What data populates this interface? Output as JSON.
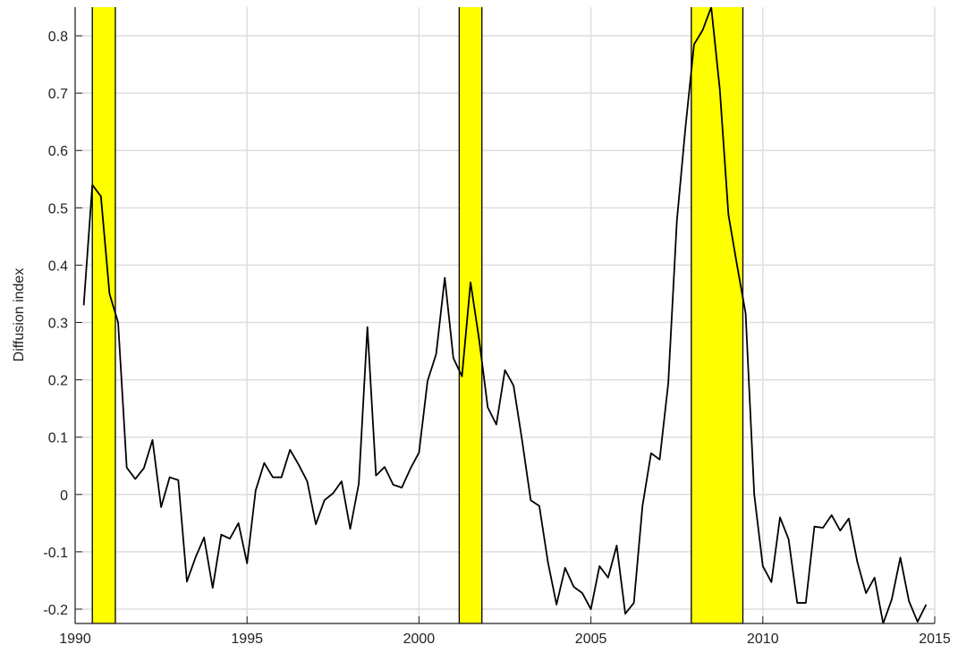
{
  "chart_data": {
    "type": "line",
    "ylabel": "Diffusion index",
    "x": [
      1990.25,
      1990.5,
      1990.75,
      1991,
      1991.25,
      1991.5,
      1991.75,
      1992,
      1992.25,
      1992.5,
      1992.75,
      1993,
      1993.25,
      1993.5,
      1993.75,
      1994,
      1994.25,
      1994.5,
      1994.75,
      1995,
      1995.25,
      1995.5,
      1995.75,
      1996,
      1996.25,
      1996.5,
      1996.75,
      1997,
      1997.25,
      1997.5,
      1997.75,
      1998,
      1998.25,
      1998.5,
      1998.75,
      1999,
      1999.25,
      1999.5,
      1999.75,
      2000,
      2000.25,
      2000.5,
      2000.75,
      2001,
      2001.25,
      2001.5,
      2001.75,
      2002,
      2002.25,
      2002.5,
      2002.75,
      2003,
      2003.25,
      2003.5,
      2003.75,
      2004,
      2004.25,
      2004.5,
      2004.75,
      2005,
      2005.25,
      2005.5,
      2005.75,
      2006,
      2006.25,
      2006.5,
      2006.75,
      2007,
      2007.25,
      2007.5,
      2007.75,
      2008,
      2008.25,
      2008.5,
      2008.75,
      2009,
      2009.25,
      2009.5,
      2009.75,
      2010,
      2010.25,
      2010.5,
      2010.75,
      2011,
      2011.25,
      2011.5,
      2011.75,
      2012,
      2012.25,
      2012.5,
      2012.75,
      2013,
      2013.25,
      2013.5,
      2013.75,
      2014,
      2014.25,
      2014.5,
      2014.75
    ],
    "series": [
      {
        "color": "#000000",
        "values": [
          0.33,
          0.54,
          0.52,
          0.35,
          0.3,
          0.047,
          0.027,
          0.046,
          0.095,
          -0.022,
          0.03,
          0.025,
          -0.152,
          -0.11,
          -0.075,
          -0.163,
          -0.07,
          -0.077,
          -0.05,
          -0.12,
          0.007,
          0.055,
          0.03,
          0.03,
          0.078,
          0.052,
          0.023,
          -0.052,
          -0.01,
          0.002,
          0.023,
          -0.06,
          0.019,
          0.292,
          0.033,
          0.048,
          0.017,
          0.012,
          0.045,
          0.073,
          0.198,
          0.245,
          0.378,
          0.238,
          0.206,
          0.37,
          0.27,
          0.152,
          0.122,
          0.217,
          0.19,
          0.094,
          -0.01,
          -0.02,
          -0.118,
          -0.192,
          -0.128,
          -0.161,
          -0.172,
          -0.2,
          -0.125,
          -0.145,
          -0.089,
          -0.208,
          -0.189,
          -0.02,
          0.072,
          0.061,
          0.194,
          0.477,
          0.64,
          0.785,
          0.81,
          0.85,
          0.706,
          0.488,
          0.4,
          0.316,
          0.0,
          -0.125,
          -0.153,
          -0.04,
          -0.078,
          -0.189,
          -0.189,
          -0.056,
          -0.058,
          -0.036,
          -0.063,
          -0.042,
          -0.118,
          -0.172,
          -0.145,
          -0.225,
          -0.183,
          -0.11,
          -0.186,
          -0.222,
          -0.192
        ]
      }
    ],
    "shaded_regions": [
      [
        1990.5,
        1991.17
      ],
      [
        2001.17,
        2001.83
      ],
      [
        2007.92,
        2009.42
      ]
    ],
    "shade_color": "#ffff00",
    "xlim": [
      1990,
      2015
    ],
    "xticks": [
      1990,
      1995,
      2000,
      2005,
      2010,
      2015
    ],
    "ylim": [
      -0.225,
      0.85
    ],
    "yticks": [
      -0.2,
      -0.1,
      0,
      0.1,
      0.2,
      0.3,
      0.4,
      0.5,
      0.6,
      0.7,
      0.8
    ],
    "grid": true
  }
}
